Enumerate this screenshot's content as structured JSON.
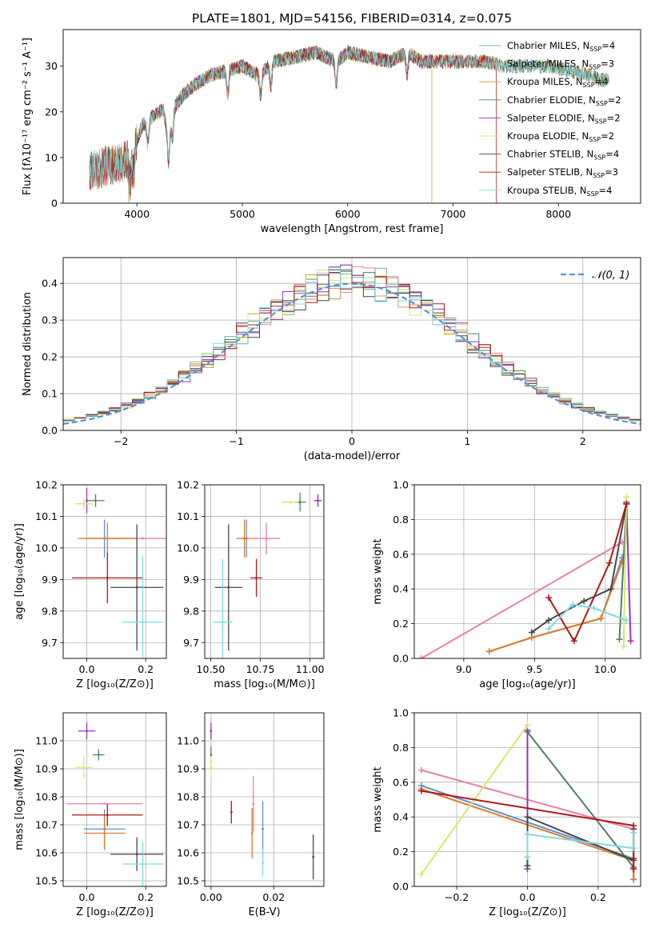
{
  "title": "PLATE=1801, MJD=54156, FIBERID=0314, z=0.075",
  "colors": {
    "chabrier_miles": "#6fb0a6",
    "salpeter_miles": "#f08a82",
    "kroupa_miles": "#c89a32",
    "chabrier_elodie": "#4f7f63",
    "salpeter_elodie": "#9933b3",
    "kroupa_elodie": "#d8e86a",
    "chabrier_stelib": "#474747",
    "salpeter_stelib": "#b01818",
    "kroupa_stelib": "#7fdbe0",
    "blue": "#5b8fd8",
    "orange": "#e07a2a",
    "pink": "#e87fb0"
  },
  "chart_data": [
    {
      "id": "spectrum",
      "type": "line",
      "xlabel": "wavelength [Angstrom, rest frame]",
      "ylabel": "Flux [fλ10⁻¹⁷ erg cm⁻² s⁻¹ A⁻¹]",
      "xlim": [
        3300,
        8780
      ],
      "ylim": [
        0,
        38
      ],
      "xticks": [
        4000,
        5000,
        6000,
        7000,
        8000
      ],
      "yticks": [
        0,
        10,
        20,
        30
      ],
      "legend_position": "top-right",
      "series": [
        {
          "name": "Chabrier MILES, N_SSP=4",
          "color": "#6fb0a6"
        },
        {
          "name": "Salpeter MILES, N_SSP=3",
          "color": "#f08a82"
        },
        {
          "name": "Kroupa MILES, N_SSP=4",
          "color": "#c89a32"
        },
        {
          "name": "Chabrier ELODIE, N_SSP=2",
          "color": "#4f7f63"
        },
        {
          "name": "Salpeter ELODIE, N_SSP=2",
          "color": "#9933b3"
        },
        {
          "name": "Kroupa ELODIE, N_SSP=2",
          "color": "#d8e86a"
        },
        {
          "name": "Chabrier STELIB, N_SSP=4",
          "color": "#474747"
        },
        {
          "name": "Salpeter STELIB, N_SSP=3",
          "color": "#b01818"
        },
        {
          "name": "Kroupa STELIB, N_SSP=4",
          "color": "#7fdbe0"
        }
      ],
      "continuum": {
        "x": [
          3550,
          3700,
          3850,
          3950,
          4050,
          4150,
          4250,
          4300,
          4350,
          4450,
          4550,
          4700,
          4860,
          5000,
          5150,
          5300,
          5500,
          5700,
          5890,
          6000,
          6200,
          6400,
          6563,
          6700,
          6900,
          7100,
          7300,
          7500,
          7700,
          7900,
          8100,
          8300,
          8400
        ],
        "y": [
          7,
          8,
          9,
          10,
          17,
          19,
          20.5,
          14,
          21,
          24,
          26,
          28,
          29,
          30,
          28,
          31,
          32,
          33,
          31,
          33,
          32,
          31,
          33,
          31,
          31,
          31,
          31,
          30,
          30,
          30,
          29,
          28,
          27
        ]
      }
    },
    {
      "id": "residuals",
      "type": "bar",
      "xlabel": "(data-model)/error",
      "ylabel": "Normed distribution",
      "xlim": [
        -2.5,
        2.5
      ],
      "ylim": [
        0,
        0.47
      ],
      "xticks": [
        -2,
        -1,
        0,
        1,
        2
      ],
      "yticks": [
        0.0,
        0.1,
        0.2,
        0.3,
        0.4
      ],
      "reference_label": "𝒩(0, 1)",
      "legend_position": "top-right",
      "bin_width": 0.1
    },
    {
      "id": "z-age",
      "type": "scatter",
      "xlabel": "Z [log₁₀(Z/Z⊙)]",
      "ylabel": "age  [log₁₀(age/yr)]",
      "xlim": [
        -0.08,
        0.27
      ],
      "ylim": [
        9.65,
        10.2
      ],
      "xticks": [
        0.0,
        0.2
      ],
      "yticks": [
        9.7,
        9.8,
        9.9,
        10.0,
        10.1,
        10.2
      ],
      "points": [
        {
          "series": "Chabrier MILES",
          "x": 0.06,
          "y": 10.03,
          "xerr": 0.07,
          "yerr": 0.06,
          "color": "#5b8fd8"
        },
        {
          "series": "Salpeter MILES",
          "x": 0.19,
          "y": 10.03,
          "xerr": 0.1,
          "yerr": 0.0,
          "color": "#e87fb0"
        },
        {
          "series": "Kroupa MILES",
          "x": 0.07,
          "y": 10.03,
          "xerr": 0.1,
          "yerr": 0.05,
          "color": "#e07a2a"
        },
        {
          "series": "Chabrier ELODIE",
          "x": 0.03,
          "y": 10.15,
          "xerr": 0.03,
          "yerr": 0.02,
          "color": "#4f7f63"
        },
        {
          "series": "Salpeter ELODIE",
          "x": 0.0,
          "y": 10.15,
          "xerr": 0.0,
          "yerr": 0.04,
          "color": "#9933b3"
        },
        {
          "series": "Kroupa ELODIE",
          "x": -0.01,
          "y": 10.14,
          "xerr": 0.03,
          "yerr": 0.02,
          "color": "#d8e86a"
        },
        {
          "series": "Chabrier STELIB",
          "x": 0.17,
          "y": 9.875,
          "xerr": 0.09,
          "yerr": 0.2,
          "color": "#474747"
        },
        {
          "series": "Salpeter STELIB",
          "x": 0.07,
          "y": 9.905,
          "xerr": 0.12,
          "yerr": 0.08,
          "color": "#b01818"
        },
        {
          "series": "Kroupa STELIB",
          "x": 0.19,
          "y": 9.765,
          "xerr": 0.07,
          "yerr": 0.21,
          "color": "#7fdbe0"
        }
      ]
    },
    {
      "id": "mass-age",
      "type": "scatter",
      "xlabel": "mass [log₁₀(M/M⊙)]",
      "ylabel": "",
      "xlim": [
        10.47,
        11.07
      ],
      "ylim": [
        9.65,
        10.2
      ],
      "xticks": [
        10.5,
        10.75,
        11.0
      ],
      "yticks": [
        9.7,
        9.8,
        9.9,
        10.0,
        10.1,
        10.2
      ],
      "points": [
        {
          "series": "Chabrier MILES",
          "x": 10.68,
          "y": 10.03,
          "xerr": 0.0,
          "yerr": 0.06,
          "color": "#5b8fd8"
        },
        {
          "series": "Salpeter MILES",
          "x": 10.78,
          "y": 10.03,
          "xerr": 0.07,
          "yerr": 0.05,
          "color": "#e87fb0"
        },
        {
          "series": "Kroupa MILES",
          "x": 10.67,
          "y": 10.03,
          "xerr": 0.04,
          "yerr": 0.06,
          "color": "#e07a2a"
        },
        {
          "series": "Chabrier ELODIE",
          "x": 10.95,
          "y": 10.145,
          "xerr": 0.03,
          "yerr": 0.03,
          "color": "#4f7f63"
        },
        {
          "series": "Salpeter ELODIE",
          "x": 11.04,
          "y": 10.15,
          "xerr": 0.02,
          "yerr": 0.02,
          "color": "#9933b3"
        },
        {
          "series": "Kroupa ELODIE",
          "x": 10.9,
          "y": 10.145,
          "xerr": 0.04,
          "yerr": 0.0,
          "color": "#d8e86a"
        },
        {
          "series": "Chabrier STELIB",
          "x": 10.59,
          "y": 9.875,
          "xerr": 0.07,
          "yerr": 0.2,
          "color": "#474747"
        },
        {
          "series": "Salpeter STELIB",
          "x": 10.73,
          "y": 9.905,
          "xerr": 0.03,
          "yerr": 0.06,
          "color": "#b01818"
        },
        {
          "series": "Kroupa STELIB",
          "x": 10.56,
          "y": 9.765,
          "xerr": 0.05,
          "yerr": 0.2,
          "color": "#7fdbe0"
        }
      ]
    },
    {
      "id": "age-weight",
      "type": "line",
      "xlabel": "age  [log₁₀(age/yr)]",
      "ylabel": "mass weight",
      "xlim": [
        8.65,
        10.25
      ],
      "ylim": [
        0,
        1.0
      ],
      "xticks": [
        9.0,
        9.5,
        10.0
      ],
      "yticks": [
        0.0,
        0.2,
        0.4,
        0.6,
        0.8,
        1.0
      ],
      "series": [
        {
          "name": "Salpeter MILES",
          "color": "#e87fb0",
          "x": [
            8.7,
            10.12
          ],
          "y": [
            0.0,
            0.67
          ]
        },
        {
          "name": "Chabrier MILES",
          "color": "#5b8fd8",
          "x": [
            9.18,
            9.48,
            9.97,
            10.12
          ],
          "y": [
            0.04,
            0.12,
            0.23,
            0.58
          ]
        },
        {
          "name": "Kroupa MILES",
          "color": "#e07a2a",
          "x": [
            9.18,
            9.48,
            9.97,
            10.12
          ],
          "y": [
            0.04,
            0.12,
            0.23,
            0.56
          ]
        },
        {
          "name": "Chabrier ELODIE",
          "color": "#4f7f63",
          "x": [
            10.1,
            10.15
          ],
          "y": [
            0.11,
            0.89
          ]
        },
        {
          "name": "Salpeter ELODIE",
          "color": "#9933b3",
          "x": [
            10.15,
            10.18
          ],
          "y": [
            0.9,
            0.1
          ]
        },
        {
          "name": "Kroupa ELODIE",
          "color": "#d8e86a",
          "x": [
            10.13,
            10.15
          ],
          "y": [
            0.07,
            0.93
          ]
        },
        {
          "name": "Chabrier STELIB",
          "color": "#474747",
          "x": [
            9.48,
            9.6,
            9.85,
            10.04,
            10.15
          ],
          "y": [
            0.15,
            0.22,
            0.33,
            0.4,
            0.89
          ]
        },
        {
          "name": "Salpeter STELIB",
          "color": "#b01818",
          "x": [
            9.6,
            9.78,
            10.03,
            10.15
          ],
          "y": [
            0.35,
            0.1,
            0.55,
            0.89
          ]
        },
        {
          "name": "Kroupa STELIB",
          "color": "#7fdbe0",
          "x": [
            9.6,
            9.77,
            9.92,
            10.15
          ],
          "y": [
            0.17,
            0.31,
            0.29,
            0.22
          ]
        }
      ]
    },
    {
      "id": "z-mass",
      "type": "scatter",
      "xlabel": "Z [log₁₀(Z/Z⊙)]",
      "ylabel": "mass [log₁₀(M/M⊙)]",
      "xlim": [
        -0.08,
        0.27
      ],
      "ylim": [
        10.48,
        11.1
      ],
      "xticks": [
        0.0,
        0.2
      ],
      "yticks": [
        10.5,
        10.6,
        10.7,
        10.8,
        10.9,
        11.0
      ],
      "points": [
        {
          "series": "Chabrier MILES",
          "x": 0.06,
          "y": 10.685,
          "xerr": 0.07,
          "yerr": 0.07,
          "color": "#5b8fd8"
        },
        {
          "series": "Salpeter MILES",
          "x": 0.06,
          "y": 10.775,
          "xerr": 0.13,
          "yerr": 0.0,
          "color": "#e87fb0"
        },
        {
          "series": "Kroupa MILES",
          "x": 0.06,
          "y": 10.67,
          "xerr": 0.07,
          "yerr": 0.06,
          "color": "#e07a2a"
        },
        {
          "series": "Chabrier ELODIE",
          "x": 0.04,
          "y": 10.95,
          "xerr": 0.02,
          "yerr": 0.02,
          "color": "#4f7f63"
        },
        {
          "series": "Salpeter ELODIE",
          "x": 0.0,
          "y": 11.035,
          "xerr": 0.03,
          "yerr": 0.03,
          "color": "#9933b3"
        },
        {
          "series": "Kroupa ELODIE",
          "x": -0.01,
          "y": 10.905,
          "xerr": 0.03,
          "yerr": 0.04,
          "color": "#d8e86a"
        },
        {
          "series": "Chabrier STELIB",
          "x": 0.17,
          "y": 10.595,
          "xerr": 0.09,
          "yerr": 0.06,
          "color": "#474747"
        },
        {
          "series": "Salpeter STELIB",
          "x": 0.07,
          "y": 10.735,
          "xerr": 0.12,
          "yerr": 0.04,
          "color": "#b01818"
        },
        {
          "series": "Kroupa STELIB",
          "x": 0.19,
          "y": 10.56,
          "xerr": 0.07,
          "yerr": 0.08,
          "color": "#7fdbe0"
        }
      ]
    },
    {
      "id": "ebv-mass",
      "type": "scatter",
      "xlabel": "E(B-V)",
      "ylabel": "",
      "xlim": [
        -0.002,
        0.036
      ],
      "ylim": [
        10.48,
        11.1
      ],
      "xticks": [
        0.0,
        0.02
      ],
      "yticks": [
        10.5,
        10.6,
        10.7,
        10.8,
        10.9,
        11.0
      ],
      "points": [
        {
          "series": "Chabrier MILES",
          "x": 0.0165,
          "y": 10.685,
          "xerr": 0,
          "yerr": 0.1,
          "color": "#5b8fd8"
        },
        {
          "series": "Salpeter MILES",
          "x": 0.0135,
          "y": 10.775,
          "xerr": 0,
          "yerr": 0.1,
          "color": "#e87fb0"
        },
        {
          "series": "Kroupa MILES",
          "x": 0.0131,
          "y": 10.67,
          "xerr": 0,
          "yerr": 0.09,
          "color": "#e07a2a"
        },
        {
          "series": "Chabrier ELODIE",
          "x": 0.0,
          "y": 10.95,
          "xerr": 0,
          "yerr": 0.03,
          "color": "#4f7f63"
        },
        {
          "series": "Salpeter ELODIE",
          "x": 0.0,
          "y": 11.035,
          "xerr": 0,
          "yerr": 0.03,
          "color": "#9933b3"
        },
        {
          "series": "Kroupa ELODIE",
          "x": 0.0,
          "y": 10.905,
          "xerr": 0,
          "yerr": 0.04,
          "color": "#d8e86a"
        },
        {
          "series": "Chabrier STELIB",
          "x": 0.0326,
          "y": 10.585,
          "xerr": 0,
          "yerr": 0.08,
          "color": "#474747"
        },
        {
          "series": "Salpeter STELIB",
          "x": 0.0065,
          "y": 10.745,
          "xerr": 0,
          "yerr": 0.04,
          "color": "#b01818"
        },
        {
          "series": "Kroupa STELIB",
          "x": 0.0165,
          "y": 10.565,
          "xerr": 0,
          "yerr": 0.05,
          "color": "#7fdbe0"
        }
      ]
    },
    {
      "id": "z-weight",
      "type": "line",
      "xlabel": "Z [log₁₀(Z/Z⊙)]",
      "ylabel": "mass weight",
      "xlim": [
        -0.32,
        0.32
      ],
      "ylim": [
        0,
        1.0
      ],
      "xticks": [
        -0.2,
        0.0,
        0.2
      ],
      "yticks": [
        0.0,
        0.2,
        0.4,
        0.6,
        0.8,
        1.0
      ],
      "series": [
        {
          "name": "Salpeter MILES",
          "color": "#e87fb0",
          "x": [
            -0.3,
            0.3
          ],
          "y": [
            0.67,
            0.33
          ]
        },
        {
          "name": "Chabrier MILES",
          "color": "#5b8fd8",
          "x": [
            -0.3,
            0.3,
            0.3
          ],
          "y": [
            0.58,
            0.16,
            0.04
          ]
        },
        {
          "name": "Kroupa MILES",
          "color": "#e07a2a",
          "x": [
            -0.3,
            0.3,
            0.3
          ],
          "y": [
            0.56,
            0.15,
            0.04
          ]
        },
        {
          "name": "Chabrier ELODIE",
          "color": "#4f7f63",
          "x": [
            0.0,
            0.3
          ],
          "y": [
            0.89,
            0.11
          ]
        },
        {
          "name": "Salpeter ELODIE",
          "color": "#9933b3",
          "x": [
            0.0,
            0.0
          ],
          "y": [
            0.9,
            0.1
          ]
        },
        {
          "name": "Kroupa ELODIE",
          "color": "#d8e86a",
          "x": [
            -0.3,
            0.0
          ],
          "y": [
            0.07,
            0.93
          ]
        },
        {
          "name": "Chabrier STELIB",
          "color": "#474747",
          "x": [
            0.0,
            0.0,
            0.3,
            0.3
          ],
          "y": [
            0.12,
            0.4,
            0.15,
            0.33
          ]
        },
        {
          "name": "Salpeter STELIB",
          "color": "#b01818",
          "x": [
            -0.3,
            0.3,
            0.3,
            0.3
          ],
          "y": [
            0.55,
            0.35,
            0.16,
            0.1
          ]
        },
        {
          "name": "Kroupa STELIB",
          "color": "#7fdbe0",
          "x": [
            0.0,
            0.0,
            0.3,
            0.3
          ],
          "y": [
            0.17,
            0.3,
            0.22,
            0.31
          ]
        }
      ]
    }
  ]
}
